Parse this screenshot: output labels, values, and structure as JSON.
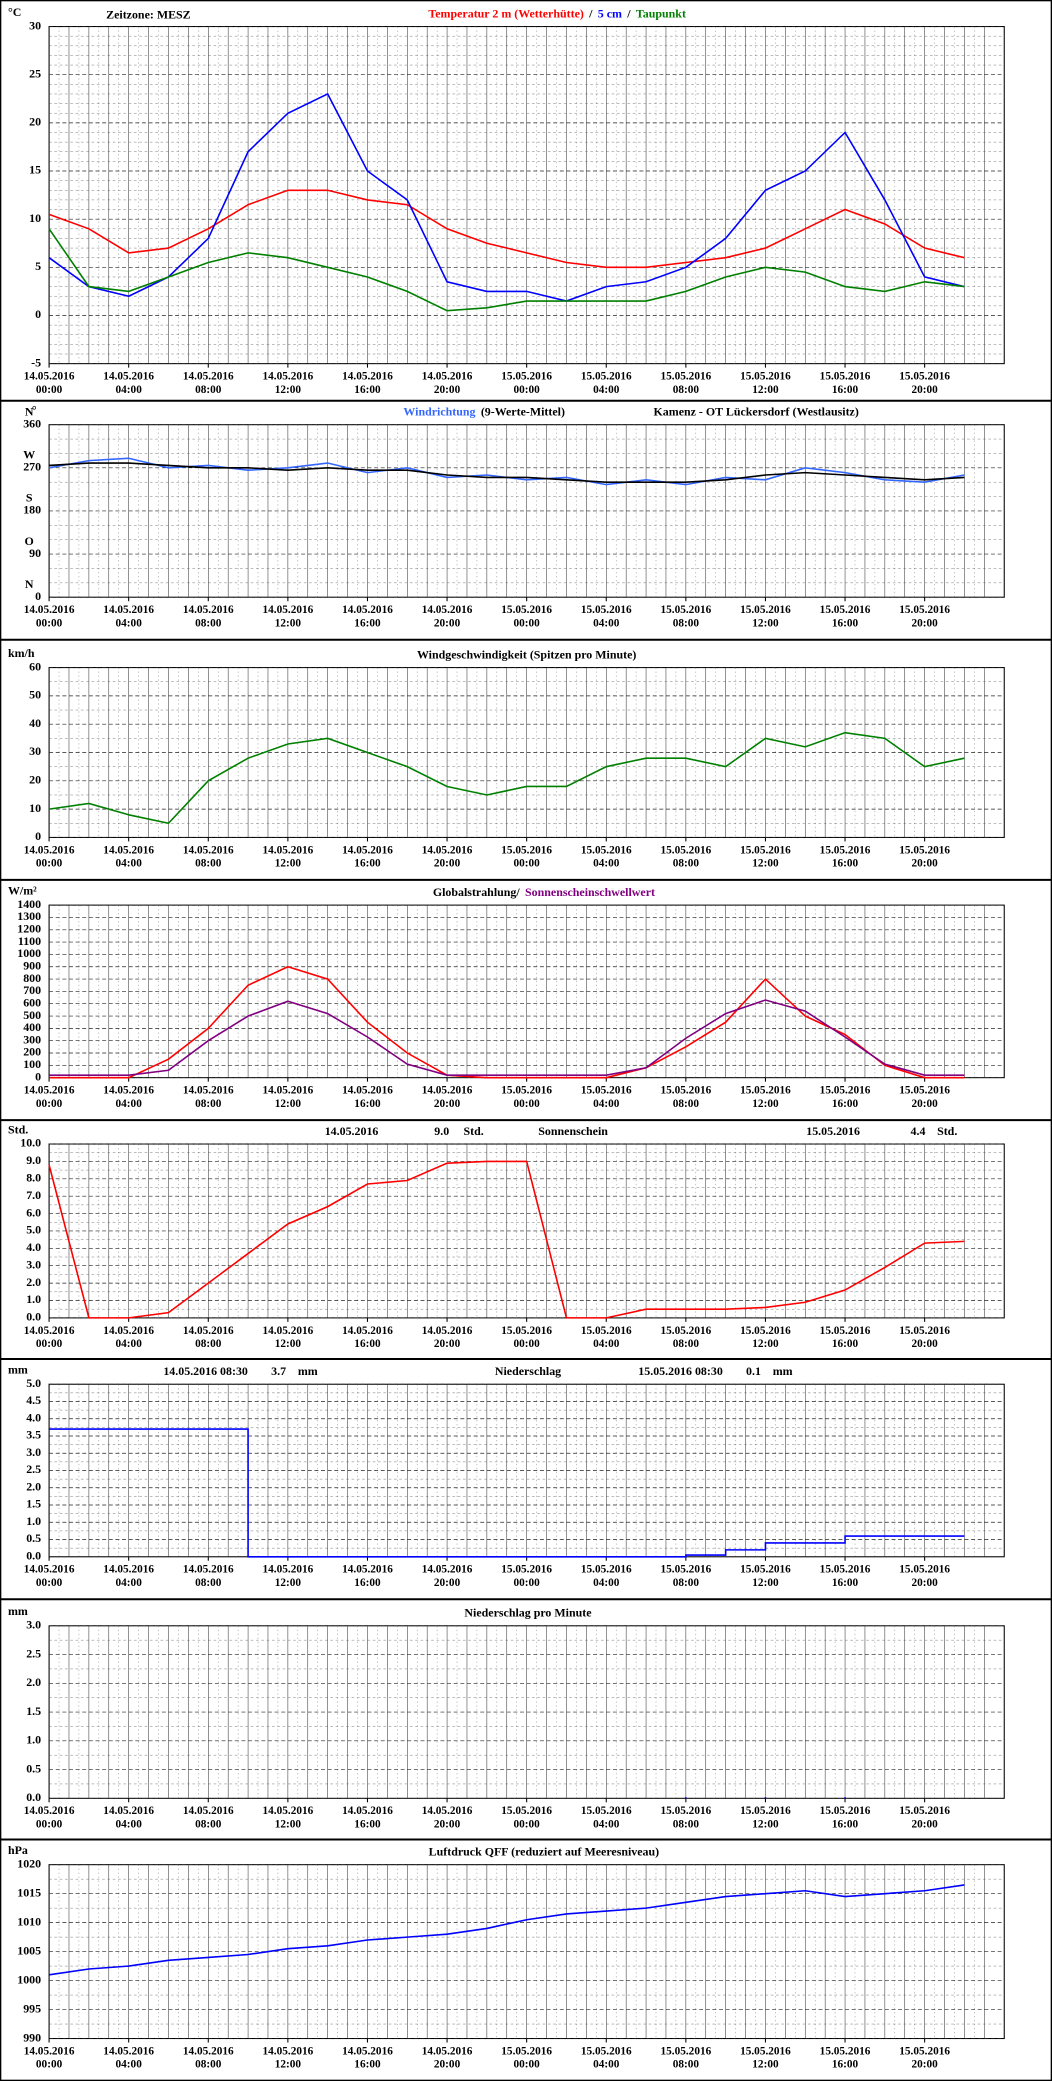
{
  "chart_data": [
    {
      "type": "line",
      "unit": "°C",
      "subtitle": "Zeitzone: MESZ",
      "legend_separator": "/",
      "x": [
        "14.05.2016 00:00",
        "14.05.2016 02:00",
        "14.05.2016 04:00",
        "14.05.2016 06:00",
        "14.05.2016 08:00",
        "14.05.2016 10:00",
        "14.05.2016 12:00",
        "14.05.2016 14:00",
        "14.05.2016 16:00",
        "14.05.2016 18:00",
        "14.05.2016 20:00",
        "14.05.2016 22:00",
        "15.05.2016 00:00",
        "15.05.2016 02:00",
        "15.05.2016 04:00",
        "15.05.2016 06:00",
        "15.05.2016 08:00",
        "15.05.2016 10:00",
        "15.05.2016 12:00",
        "15.05.2016 14:00",
        "15.05.2016 16:00",
        "15.05.2016 18:00",
        "15.05.2016 20:00",
        "15.05.2016 22:00"
      ],
      "xlim": [
        "14.05.2016 00:00",
        "16.05.2016 00:00"
      ],
      "xticks": [
        "14.05.2016 00:00",
        "14.05.2016 04:00",
        "14.05.2016 08:00",
        "14.05.2016 12:00",
        "14.05.2016 16:00",
        "14.05.2016 20:00",
        "15.05.2016 00:00",
        "15.05.2016 04:00",
        "15.05.2016 08:00",
        "15.05.2016 12:00",
        "15.05.2016 16:00",
        "15.05.2016 20:00"
      ],
      "ylim": [
        -5,
        30
      ],
      "yticks": [
        -5,
        0,
        5,
        10,
        15,
        20,
        25,
        30
      ],
      "series": [
        {
          "name": "Temperatur 2 m (Wetterhütte)",
          "color": "#ff0000",
          "values": [
            10.5,
            9,
            6.5,
            7,
            9,
            11.5,
            13,
            13,
            12,
            11.5,
            9,
            7.5,
            6.5,
            5.5,
            5,
            5,
            5.5,
            6,
            7,
            9,
            11,
            9.5,
            7,
            6
          ]
        },
        {
          "name": "5 cm",
          "color": "#0000ff",
          "values": [
            6,
            3,
            2,
            4,
            8,
            17,
            21,
            23,
            15,
            12,
            3.5,
            2.5,
            2.5,
            1.5,
            3,
            3.5,
            5,
            8,
            13,
            15,
            19,
            12,
            4,
            3
          ]
        },
        {
          "name": "Taupunkt",
          "color": "#008000",
          "values": [
            9,
            3,
            2.5,
            4,
            5.5,
            6.5,
            6,
            5,
            4,
            2.5,
            0.5,
            0.8,
            1.5,
            1.5,
            1.5,
            1.5,
            2.5,
            4,
            5,
            4.5,
            3,
            2.5,
            3.5,
            3
          ]
        }
      ]
    },
    {
      "type": "line",
      "unit": "°",
      "title": "Kamenz - OT Lückersdorf (Westlausitz)",
      "compass": [
        "N",
        "O",
        "S",
        "W",
        "N"
      ],
      "x": [
        "14.05.2016 00:00",
        "14.05.2016 02:00",
        "14.05.2016 04:00",
        "14.05.2016 06:00",
        "14.05.2016 08:00",
        "14.05.2016 10:00",
        "14.05.2016 12:00",
        "14.05.2016 14:00",
        "14.05.2016 16:00",
        "14.05.2016 18:00",
        "14.05.2016 20:00",
        "14.05.2016 22:00",
        "15.05.2016 00:00",
        "15.05.2016 02:00",
        "15.05.2016 04:00",
        "15.05.2016 06:00",
        "15.05.2016 08:00",
        "15.05.2016 10:00",
        "15.05.2016 12:00",
        "15.05.2016 14:00",
        "15.05.2016 16:00",
        "15.05.2016 18:00",
        "15.05.2016 20:00",
        "15.05.2016 22:00"
      ],
      "xlim": [
        "14.05.2016 00:00",
        "16.05.2016 00:00"
      ],
      "xticks": [
        "14.05.2016 00:00",
        "14.05.2016 04:00",
        "14.05.2016 08:00",
        "14.05.2016 12:00",
        "14.05.2016 16:00",
        "14.05.2016 20:00",
        "15.05.2016 00:00",
        "15.05.2016 04:00",
        "15.05.2016 08:00",
        "15.05.2016 12:00",
        "15.05.2016 16:00",
        "15.05.2016 20:00"
      ],
      "ylim": [
        0,
        360
      ],
      "yticks": [
        0,
        90,
        180,
        270,
        360
      ],
      "series": [
        {
          "name": "Windrichtung",
          "color": "#3366ff",
          "values": [
            270,
            285,
            290,
            270,
            275,
            265,
            270,
            280,
            260,
            270,
            250,
            255,
            245,
            250,
            235,
            245,
            235,
            250,
            245,
            270,
            260,
            245,
            240,
            255
          ]
        },
        {
          "name": "(9-Werte-Mittel)",
          "color": "#000000",
          "values": [
            275,
            280,
            280,
            275,
            270,
            270,
            265,
            270,
            265,
            265,
            255,
            250,
            250,
            245,
            240,
            240,
            240,
            245,
            255,
            260,
            255,
            250,
            245,
            250
          ]
        }
      ]
    },
    {
      "type": "line",
      "unit": "km/h",
      "title": "Windgeschwindigkeit (Spitzen pro Minute)",
      "x": [
        "14.05.2016 00:00",
        "14.05.2016 02:00",
        "14.05.2016 04:00",
        "14.05.2016 06:00",
        "14.05.2016 08:00",
        "14.05.2016 10:00",
        "14.05.2016 12:00",
        "14.05.2016 14:00",
        "14.05.2016 16:00",
        "14.05.2016 18:00",
        "14.05.2016 20:00",
        "14.05.2016 22:00",
        "15.05.2016 00:00",
        "15.05.2016 02:00",
        "15.05.2016 04:00",
        "15.05.2016 06:00",
        "15.05.2016 08:00",
        "15.05.2016 10:00",
        "15.05.2016 12:00",
        "15.05.2016 14:00",
        "15.05.2016 16:00",
        "15.05.2016 18:00",
        "15.05.2016 20:00",
        "15.05.2016 22:00"
      ],
      "xlim": [
        "14.05.2016 00:00",
        "16.05.2016 00:00"
      ],
      "xticks": [
        "14.05.2016 00:00",
        "14.05.2016 04:00",
        "14.05.2016 08:00",
        "14.05.2016 12:00",
        "14.05.2016 16:00",
        "14.05.2016 20:00",
        "15.05.2016 00:00",
        "15.05.2016 04:00",
        "15.05.2016 08:00",
        "15.05.2016 12:00",
        "15.05.2016 16:00",
        "15.05.2016 20:00"
      ],
      "ylim": [
        0,
        60
      ],
      "yticks": [
        0,
        10,
        20,
        30,
        40,
        50,
        60
      ],
      "series": [
        {
          "color": "#008000",
          "values": [
            10,
            12,
            8,
            5,
            20,
            28,
            33,
            35,
            30,
            25,
            18,
            15,
            18,
            18,
            25,
            28,
            28,
            25,
            35,
            32,
            37,
            35,
            25,
            28
          ]
        }
      ]
    },
    {
      "type": "line",
      "unit": "W/m²",
      "x": [
        "14.05.2016 00:00",
        "14.05.2016 02:00",
        "14.05.2016 04:00",
        "14.05.2016 06:00",
        "14.05.2016 08:00",
        "14.05.2016 10:00",
        "14.05.2016 12:00",
        "14.05.2016 14:00",
        "14.05.2016 16:00",
        "14.05.2016 18:00",
        "14.05.2016 20:00",
        "14.05.2016 22:00",
        "15.05.2016 00:00",
        "15.05.2016 02:00",
        "15.05.2016 04:00",
        "15.05.2016 06:00",
        "15.05.2016 08:00",
        "15.05.2016 10:00",
        "15.05.2016 12:00",
        "15.05.2016 14:00",
        "15.05.2016 16:00",
        "15.05.2016 18:00",
        "15.05.2016 20:00",
        "15.05.2016 22:00"
      ],
      "xlim": [
        "14.05.2016 00:00",
        "16.05.2016 00:00"
      ],
      "xticks": [
        "14.05.2016 00:00",
        "14.05.2016 04:00",
        "14.05.2016 08:00",
        "14.05.2016 12:00",
        "14.05.2016 16:00",
        "14.05.2016 20:00",
        "15.05.2016 00:00",
        "15.05.2016 04:00",
        "15.05.2016 08:00",
        "15.05.2016 12:00",
        "15.05.2016 16:00",
        "15.05.2016 20:00"
      ],
      "ylim": [
        0,
        1400
      ],
      "yticks": [
        0,
        100,
        200,
        300,
        400,
        500,
        600,
        700,
        800,
        900,
        1000,
        1100,
        1200,
        1300,
        1400
      ],
      "series": [
        {
          "name": "Globalstrahlung/",
          "color": "#ff0000",
          "legend_color": "#000000",
          "values": [
            0,
            0,
            0,
            150,
            400,
            750,
            900,
            800,
            450,
            200,
            20,
            0,
            0,
            0,
            0,
            80,
            250,
            450,
            800,
            500,
            350,
            100,
            0,
            0
          ]
        },
        {
          "name": "Sonnenscheinschwellwert",
          "color": "#800080",
          "values": [
            20,
            20,
            20,
            60,
            300,
            500,
            620,
            520,
            330,
            110,
            20,
            20,
            20,
            20,
            20,
            80,
            320,
            520,
            630,
            540,
            330,
            110,
            20,
            20
          ]
        }
      ]
    },
    {
      "type": "line",
      "unit": "Std.",
      "title": "Sonnenschein",
      "annotations": [
        [
          "14.05.2016",
          "9.0",
          "Std."
        ],
        [
          "15.05.2016",
          "4.4",
          "Std."
        ]
      ],
      "x": [
        "14.05.2016 00:00",
        "14.05.2016 02:00",
        "14.05.2016 04:00",
        "14.05.2016 06:00",
        "14.05.2016 08:00",
        "14.05.2016 10:00",
        "14.05.2016 12:00",
        "14.05.2016 14:00",
        "14.05.2016 16:00",
        "14.05.2016 18:00",
        "14.05.2016 20:00",
        "14.05.2016 22:00",
        "15.05.2016 00:00",
        "15.05.2016 02:00",
        "15.05.2016 04:00",
        "15.05.2016 06:00",
        "15.05.2016 08:00",
        "15.05.2016 10:00",
        "15.05.2016 12:00",
        "15.05.2016 14:00",
        "15.05.2016 16:00",
        "15.05.2016 18:00",
        "15.05.2016 20:00",
        "15.05.2016 22:00"
      ],
      "xlim": [
        "14.05.2016 00:00",
        "16.05.2016 00:00"
      ],
      "xticks": [
        "14.05.2016 00:00",
        "14.05.2016 04:00",
        "14.05.2016 08:00",
        "14.05.2016 12:00",
        "14.05.2016 16:00",
        "14.05.2016 20:00",
        "15.05.2016 00:00",
        "15.05.2016 04:00",
        "15.05.2016 08:00",
        "15.05.2016 12:00",
        "15.05.2016 16:00",
        "15.05.2016 20:00"
      ],
      "ylim": [
        0,
        10
      ],
      "yticks": [
        {
          "value": 0,
          "label": "0.0"
        },
        {
          "value": 1,
          "label": "1.0"
        },
        {
          "value": 2,
          "label": "2.0"
        },
        {
          "value": 3,
          "label": "3.0"
        },
        {
          "value": 4,
          "label": "4.0"
        },
        {
          "value": 5,
          "label": "5.0"
        },
        {
          "value": 6,
          "label": "6.0"
        },
        {
          "value": 7,
          "label": "7.0"
        },
        {
          "value": 8,
          "label": "8.0"
        },
        {
          "value": 9,
          "label": "9.0"
        },
        {
          "value": 10,
          "label": "10.0"
        }
      ],
      "series": [
        {
          "color": "#ff0000",
          "values": [
            8.8,
            0,
            0,
            0.3,
            2,
            3.7,
            5.4,
            6.4,
            7.7,
            7.9,
            8.9,
            9,
            9,
            0,
            0,
            0.5,
            0.5,
            0.5,
            0.6,
            0.9,
            1.6,
            2.9,
            4.3,
            4.4
          ]
        }
      ]
    },
    {
      "type": "line",
      "step": true,
      "unit": "mm",
      "title": "Niederschlag",
      "annotations": [
        [
          "14.05.2016 08:30",
          "3.7",
          "mm"
        ],
        [
          "15.05.2016 08:30",
          "0.1",
          "mm"
        ]
      ],
      "x": [
        "14.05.2016 00:00",
        "14.05.2016 02:00",
        "14.05.2016 04:00",
        "14.05.2016 06:00",
        "14.05.2016 08:00",
        "14.05.2016 10:00",
        "14.05.2016 12:00",
        "14.05.2016 14:00",
        "14.05.2016 16:00",
        "14.05.2016 18:00",
        "14.05.2016 20:00",
        "14.05.2016 22:00",
        "15.05.2016 00:00",
        "15.05.2016 02:00",
        "15.05.2016 04:00",
        "15.05.2016 06:00",
        "15.05.2016 08:00",
        "15.05.2016 10:00",
        "15.05.2016 12:00",
        "15.05.2016 14:00",
        "15.05.2016 16:00",
        "15.05.2016 18:00",
        "15.05.2016 20:00",
        "15.05.2016 22:00"
      ],
      "xlim": [
        "14.05.2016 00:00",
        "16.05.2016 00:00"
      ],
      "xticks": [
        "14.05.2016 00:00",
        "14.05.2016 04:00",
        "14.05.2016 08:00",
        "14.05.2016 12:00",
        "14.05.2016 16:00",
        "14.05.2016 20:00",
        "15.05.2016 00:00",
        "15.05.2016 04:00",
        "15.05.2016 08:00",
        "15.05.2016 12:00",
        "15.05.2016 16:00",
        "15.05.2016 20:00"
      ],
      "ylim": [
        0,
        5
      ],
      "yticks": [
        {
          "value": 0,
          "label": "0.0"
        },
        {
          "value": 0.5,
          "label": "0.5"
        },
        {
          "value": 1,
          "label": "1.0"
        },
        {
          "value": 1.5,
          "label": "1.5"
        },
        {
          "value": 2,
          "label": "2.0"
        },
        {
          "value": 2.5,
          "label": "2.5"
        },
        {
          "value": 3,
          "label": "3.0"
        },
        {
          "value": 3.5,
          "label": "3.5"
        },
        {
          "value": 4,
          "label": "4.0"
        },
        {
          "value": 4.5,
          "label": "4.5"
        },
        {
          "value": 5,
          "label": "5.0"
        }
      ],
      "series": [
        {
          "color": "#0000ff",
          "values": [
            3.7,
            3.7,
            3.7,
            3.7,
            3.7,
            0,
            0,
            0,
            0,
            0,
            0,
            0,
            0,
            0,
            0,
            0,
            0.05,
            0.2,
            0.4,
            0.4,
            0.6,
            0.6,
            0.6,
            0.6
          ]
        }
      ]
    },
    {
      "type": "bar",
      "unit": "mm",
      "title": "Niederschlag pro Minute",
      "x": [
        "14.05.2016 00:00",
        "14.05.2016 02:00",
        "14.05.2016 04:00",
        "14.05.2016 06:00",
        "14.05.2016 08:00",
        "14.05.2016 10:00",
        "14.05.2016 12:00",
        "14.05.2016 14:00",
        "14.05.2016 16:00",
        "14.05.2016 18:00",
        "14.05.2016 20:00",
        "14.05.2016 22:00",
        "15.05.2016 00:00",
        "15.05.2016 02:00",
        "15.05.2016 04:00",
        "15.05.2016 06:00",
        "15.05.2016 08:00",
        "15.05.2016 10:00",
        "15.05.2016 12:00",
        "15.05.2016 14:00",
        "15.05.2016 16:00",
        "15.05.2016 18:00",
        "15.05.2016 20:00",
        "15.05.2016 22:00"
      ],
      "xlim": [
        "14.05.2016 00:00",
        "16.05.2016 00:00"
      ],
      "xticks": [
        "14.05.2016 00:00",
        "14.05.2016 04:00",
        "14.05.2016 08:00",
        "14.05.2016 12:00",
        "14.05.2016 16:00",
        "14.05.2016 20:00",
        "15.05.2016 00:00",
        "15.05.2016 04:00",
        "15.05.2016 08:00",
        "15.05.2016 12:00",
        "15.05.2016 16:00",
        "15.05.2016 20:00"
      ],
      "ylim": [
        0,
        3
      ],
      "yticks": [
        {
          "value": 0,
          "label": "0.0"
        },
        {
          "value": 0.5,
          "label": "0.5"
        },
        {
          "value": 1,
          "label": "1.0"
        },
        {
          "value": 1.5,
          "label": "1.5"
        },
        {
          "value": 2,
          "label": "2.0"
        },
        {
          "value": 2.5,
          "label": "2.5"
        },
        {
          "value": 3,
          "label": "3.0"
        }
      ],
      "series": [
        {
          "color": "#0000ff",
          "values": [
            0,
            0,
            0,
            0,
            0,
            0,
            0,
            0,
            0,
            0,
            0,
            0,
            0,
            0,
            0,
            0,
            0.02,
            0,
            0.02,
            0,
            0.02,
            0,
            0,
            0
          ]
        }
      ]
    },
    {
      "type": "line",
      "unit": "hPa",
      "title": "Luftdruck QFF (reduziert auf Meeresniveau)",
      "x": [
        "14.05.2016 00:00",
        "14.05.2016 02:00",
        "14.05.2016 04:00",
        "14.05.2016 06:00",
        "14.05.2016 08:00",
        "14.05.2016 10:00",
        "14.05.2016 12:00",
        "14.05.2016 14:00",
        "14.05.2016 16:00",
        "14.05.2016 18:00",
        "14.05.2016 20:00",
        "14.05.2016 22:00",
        "15.05.2016 00:00",
        "15.05.2016 02:00",
        "15.05.2016 04:00",
        "15.05.2016 06:00",
        "15.05.2016 08:00",
        "15.05.2016 10:00",
        "15.05.2016 12:00",
        "15.05.2016 14:00",
        "15.05.2016 16:00",
        "15.05.2016 18:00",
        "15.05.2016 20:00",
        "15.05.2016 22:00"
      ],
      "xlim": [
        "14.05.2016 00:00",
        "16.05.2016 00:00"
      ],
      "xticks": [
        "14.05.2016 00:00",
        "14.05.2016 04:00",
        "14.05.2016 08:00",
        "14.05.2016 12:00",
        "14.05.2016 16:00",
        "14.05.2016 20:00",
        "15.05.2016 00:00",
        "15.05.2016 04:00",
        "15.05.2016 08:00",
        "15.05.2016 12:00",
        "15.05.2016 16:00",
        "15.05.2016 20:00"
      ],
      "ylim": [
        990,
        1020
      ],
      "yticks": [
        990,
        995,
        1000,
        1005,
        1010,
        1015,
        1020
      ],
      "series": [
        {
          "color": "#0000ff",
          "values": [
            1001,
            1002,
            1002.5,
            1003.5,
            1004,
            1004.5,
            1005.5,
            1006,
            1007,
            1007.5,
            1008,
            1009,
            1010.5,
            1011.5,
            1012,
            1012.5,
            1013.5,
            1014.5,
            1015,
            1015.5,
            1014.5,
            1015,
            1015.5,
            1016.5
          ]
        }
      ]
    }
  ]
}
